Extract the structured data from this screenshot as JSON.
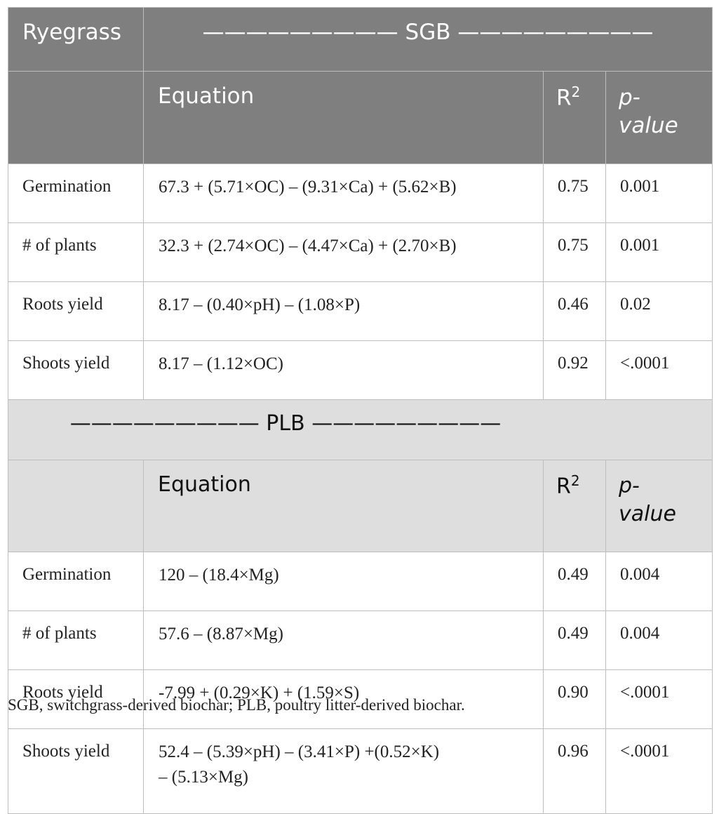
{
  "table": {
    "corner_label": "Ryegrass",
    "sections": [
      {
        "title": "————————— SGB —————————",
        "headers": {
          "equation": "Equation",
          "r2_base": "R",
          "r2_exp": "2",
          "p_line1": "p-",
          "p_line2": "value"
        },
        "rows": [
          {
            "label": "Germination",
            "equation": "67.3 + (5.71×OC) – (9.31×Ca) + (5.62×B)",
            "r2": "0.75",
            "p": "0.001"
          },
          {
            "label": "# of plants",
            "equation": "32.3 + (2.74×OC) – (4.47×Ca) + (2.70×B)",
            "r2": "0.75",
            "p": "0.001"
          },
          {
            "label": "Roots yield",
            "equation": "8.17 – (0.40×pH) – (1.08×P)",
            "r2": "0.46",
            "p": "0.02"
          },
          {
            "label": "Shoots yield",
            "equation": "8.17 – (1.12×OC)",
            "r2": "0.92",
            "p": "<.0001"
          }
        ]
      },
      {
        "title": "————————— PLB —————————",
        "headers": {
          "equation": "Equation",
          "r2_base": "R",
          "r2_exp": "2",
          "p_line1": "p-",
          "p_line2": "value"
        },
        "rows": [
          {
            "label": "Germination",
            "equation": "120 – (18.4×Mg)",
            "r2": "0.49",
            "p": "0.004"
          },
          {
            "label": "# of plants",
            "equation": "57.6 – (8.87×Mg)",
            "r2": "0.49",
            "p": "0.004"
          },
          {
            "label": "Roots yield",
            "equation": "-7.99 + (0.29×K) + (1.59×S)",
            "r2": "0.90",
            "p": "<.0001"
          },
          {
            "label": "Shoots yield",
            "equation_line1": "52.4 – (5.39×pH) – (3.41×P) +(0.52×K)",
            "equation_line2": "– (5.13×Mg)",
            "r2": "0.96",
            "p": "<.0001"
          }
        ]
      }
    ]
  },
  "footnote": "SGB, switchgrass-derived biochar; PLB, poultry litter-derived biochar."
}
